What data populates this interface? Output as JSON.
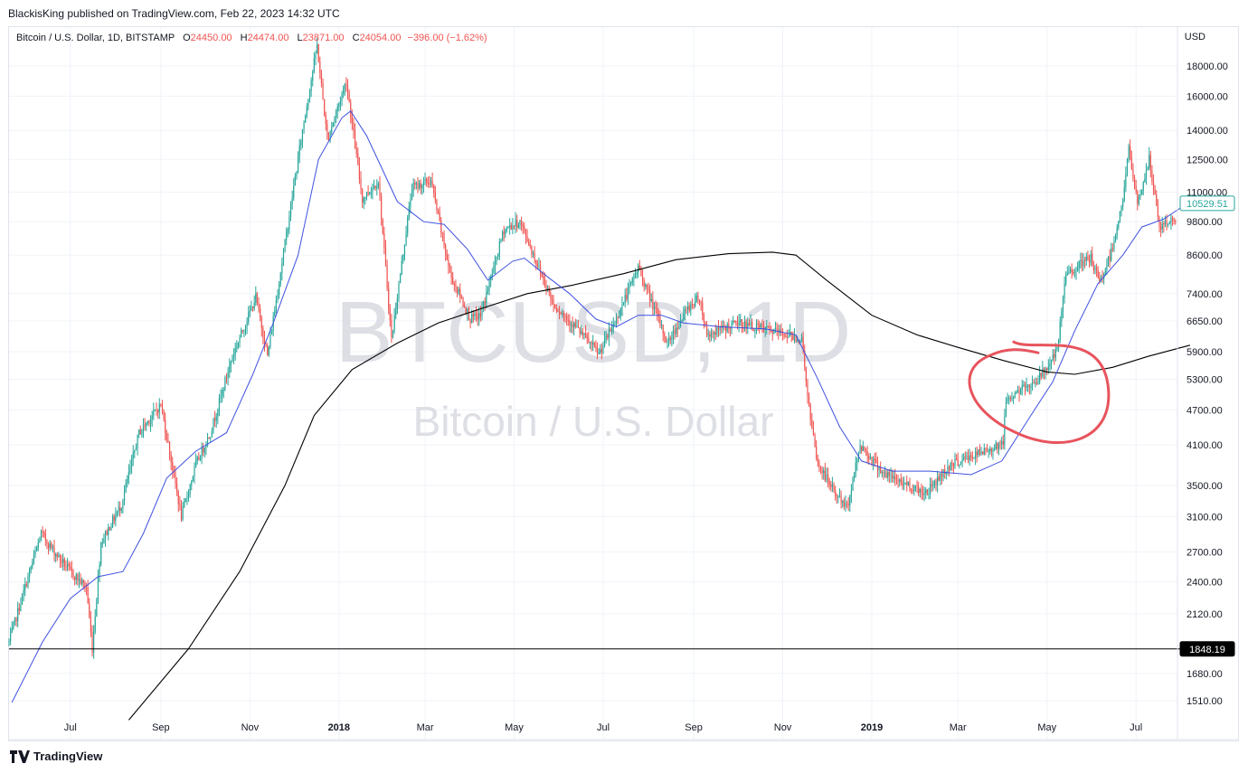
{
  "header": {
    "publish_line": "BlackisKing published on TradingView.com, Feb 22, 2023 14:32 UTC"
  },
  "legend": {
    "symbol_line": "Bitcoin / U.S. Dollar, 1D, BITSTAMP",
    "o_label": "O",
    "o_value": "24450.00",
    "h_label": "H",
    "h_value": "24474.00",
    "l_label": "L",
    "l_value": "23871.00",
    "c_label": "C",
    "c_value": "24054.00",
    "change": "−396.00 (−1.62%)"
  },
  "currency": "USD",
  "watermark": {
    "ticker": "BTCUSD, 1D",
    "name": "Bitcoin / U.S. Dollar"
  },
  "footer": {
    "brand": "TradingView"
  },
  "colors": {
    "up": "#26a69a",
    "down": "#ef5350",
    "ma_short": "#3f51e0",
    "ma_long": "#000000",
    "annotation": "#e8545d",
    "price_label_bg": "#ffffff"
  },
  "chart_data": {
    "type": "candlestick",
    "title": "Bitcoin / U.S. Dollar, 1D, BITSTAMP",
    "y_scale": "log",
    "ylim": [
      1400,
      21000
    ],
    "x_range": [
      "2017-05-20",
      "2019-08-07"
    ],
    "y_ticks": [
      18000,
      16000,
      14000,
      12500,
      11000,
      9800,
      8600,
      7400,
      6650,
      5900,
      5300,
      4700,
      4100,
      3500,
      3100,
      2700,
      2400,
      2120,
      1680,
      1510
    ],
    "y_tick_labels": [
      "18000.00",
      "16000.00",
      "14000.00",
      "12500.00",
      "11000.00",
      "9800.00",
      "8600.00",
      "7400.00",
      "6650.00",
      "5900.00",
      "5300.00",
      "4700.00",
      "4100.00",
      "3500.00",
      "3100.00",
      "2700.00",
      "2400.00",
      "2120.00",
      "1680.00",
      "1510.00"
    ],
    "x_ticks": [
      {
        "date": "2017-07-01",
        "label": "Jul"
      },
      {
        "date": "2017-09-01",
        "label": "Sep"
      },
      {
        "date": "2017-11-01",
        "label": "Nov"
      },
      {
        "date": "2018-01-01",
        "label": "2018"
      },
      {
        "date": "2018-03-01",
        "label": "Mar"
      },
      {
        "date": "2018-05-01",
        "label": "May"
      },
      {
        "date": "2018-07-01",
        "label": "Jul"
      },
      {
        "date": "2018-09-01",
        "label": "Sep"
      },
      {
        "date": "2018-11-01",
        "label": "Nov"
      },
      {
        "date": "2019-01-01",
        "label": "2019"
      },
      {
        "date": "2019-03-01",
        "label": "Mar"
      },
      {
        "date": "2019-05-01",
        "label": "May"
      },
      {
        "date": "2019-07-01",
        "label": "Jul"
      }
    ],
    "price_path": [
      [
        "2017-05-20",
        1900
      ],
      [
        "2017-06-01",
        2400
      ],
      [
        "2017-06-11",
        2900
      ],
      [
        "2017-06-20",
        2700
      ],
      [
        "2017-07-01",
        2500
      ],
      [
        "2017-07-12",
        2350
      ],
      [
        "2017-07-16",
        1850
      ],
      [
        "2017-07-22",
        2800
      ],
      [
        "2017-08-05",
        3250
      ],
      [
        "2017-08-17",
        4300
      ],
      [
        "2017-09-01",
        4800
      ],
      [
        "2017-09-15",
        3100
      ],
      [
        "2017-09-25",
        3800
      ],
      [
        "2017-10-05",
        4300
      ],
      [
        "2017-10-20",
        5800
      ],
      [
        "2017-11-05",
        7300
      ],
      [
        "2017-11-13",
        5800
      ],
      [
        "2017-11-25",
        9000
      ],
      [
        "2017-12-07",
        14000
      ],
      [
        "2017-12-17",
        19500
      ],
      [
        "2017-12-24",
        13500
      ],
      [
        "2018-01-06",
        17000
      ],
      [
        "2018-01-17",
        10700
      ],
      [
        "2018-01-28",
        11500
      ],
      [
        "2018-02-06",
        6200
      ],
      [
        "2018-02-20",
        11200
      ],
      [
        "2018-03-05",
        11500
      ],
      [
        "2018-03-18",
        8000
      ],
      [
        "2018-04-01",
        6700
      ],
      [
        "2018-04-08",
        6800
      ],
      [
        "2018-04-24",
        9500
      ],
      [
        "2018-05-05",
        9800
      ],
      [
        "2018-05-28",
        7100
      ],
      [
        "2018-06-12",
        6500
      ],
      [
        "2018-06-28",
        5850
      ],
      [
        "2018-07-10",
        6700
      ],
      [
        "2018-07-25",
        8200
      ],
      [
        "2018-08-14",
        6100
      ],
      [
        "2018-08-28",
        7000
      ],
      [
        "2018-09-05",
        7300
      ],
      [
        "2018-09-10",
        6300
      ],
      [
        "2018-10-01",
        6600
      ],
      [
        "2018-10-31",
        6350
      ],
      [
        "2018-11-14",
        6200
      ],
      [
        "2018-11-20",
        4500
      ],
      [
        "2018-11-25",
        3800
      ],
      [
        "2018-12-07",
        3400
      ],
      [
        "2018-12-15",
        3200
      ],
      [
        "2018-12-24",
        4100
      ],
      [
        "2019-01-10",
        3650
      ],
      [
        "2019-02-07",
        3400
      ],
      [
        "2019-02-24",
        3800
      ],
      [
        "2019-03-20",
        4000
      ],
      [
        "2019-04-01",
        4150
      ],
      [
        "2019-04-03",
        4900
      ],
      [
        "2019-04-25",
        5300
      ],
      [
        "2019-05-08",
        5900
      ],
      [
        "2019-05-14",
        8000
      ],
      [
        "2019-05-31",
        8500
      ],
      [
        "2019-06-06",
        7700
      ],
      [
        "2019-06-14",
        8700
      ],
      [
        "2019-06-22",
        10700
      ],
      [
        "2019-06-26",
        13000
      ],
      [
        "2019-07-02",
        10500
      ],
      [
        "2019-07-10",
        12500
      ],
      [
        "2019-07-17",
        9600
      ],
      [
        "2019-07-24",
        9800
      ],
      [
        "2019-08-01",
        10100
      ],
      [
        "2019-08-07",
        10529.51
      ]
    ],
    "ma_short_path": [
      [
        "2017-05-22",
        1500
      ],
      [
        "2017-06-12",
        1900
      ],
      [
        "2017-07-01",
        2250
      ],
      [
        "2017-07-20",
        2450
      ],
      [
        "2017-08-06",
        2500
      ],
      [
        "2017-08-20",
        2900
      ],
      [
        "2017-09-05",
        3600
      ],
      [
        "2017-09-25",
        4000
      ],
      [
        "2017-10-16",
        4300
      ],
      [
        "2017-11-03",
        5400
      ],
      [
        "2017-11-17",
        6600
      ],
      [
        "2017-12-04",
        8600
      ],
      [
        "2017-12-18",
        12500
      ],
      [
        "2018-01-03",
        14700
      ],
      [
        "2018-01-09",
        15100
      ],
      [
        "2018-01-20",
        13700
      ],
      [
        "2018-02-10",
        10600
      ],
      [
        "2018-02-28",
        9800
      ],
      [
        "2018-03-14",
        9700
      ],
      [
        "2018-03-30",
        8800
      ],
      [
        "2018-04-13",
        7800
      ],
      [
        "2018-04-30",
        8400
      ],
      [
        "2018-05-08",
        8500
      ],
      [
        "2018-05-24",
        7900
      ],
      [
        "2018-06-08",
        7400
      ],
      [
        "2018-06-26",
        6700
      ],
      [
        "2018-07-10",
        6500
      ],
      [
        "2018-07-25",
        6800
      ],
      [
        "2018-08-10",
        6800
      ],
      [
        "2018-08-25",
        6600
      ],
      [
        "2018-09-20",
        6500
      ],
      [
        "2018-10-20",
        6450
      ],
      [
        "2018-11-10",
        6300
      ],
      [
        "2018-11-25",
        5300
      ],
      [
        "2018-12-10",
        4400
      ],
      [
        "2018-12-25",
        3850
      ],
      [
        "2019-01-15",
        3700
      ],
      [
        "2019-02-10",
        3700
      ],
      [
        "2019-03-10",
        3650
      ],
      [
        "2019-03-31",
        3850
      ],
      [
        "2019-04-20",
        4600
      ],
      [
        "2019-05-05",
        5250
      ],
      [
        "2019-05-20",
        6400
      ],
      [
        "2019-06-05",
        7700
      ],
      [
        "2019-06-22",
        8600
      ],
      [
        "2019-07-05",
        9600
      ],
      [
        "2019-07-20",
        9900
      ],
      [
        "2019-08-07",
        10600
      ]
    ],
    "ma_long_path": [
      [
        "2017-08-10",
        1400
      ],
      [
        "2017-09-20",
        1850
      ],
      [
        "2017-10-25",
        2500
      ],
      [
        "2017-11-25",
        3500
      ],
      [
        "2017-12-15",
        4600
      ],
      [
        "2018-01-10",
        5500
      ],
      [
        "2018-02-10",
        6100
      ],
      [
        "2018-03-10",
        6600
      ],
      [
        "2018-04-10",
        7000
      ],
      [
        "2018-05-10",
        7400
      ],
      [
        "2018-06-10",
        7650
      ],
      [
        "2018-07-15",
        8000
      ],
      [
        "2018-08-20",
        8450
      ],
      [
        "2018-09-25",
        8650
      ],
      [
        "2018-10-25",
        8700
      ],
      [
        "2018-11-10",
        8600
      ],
      [
        "2018-12-01",
        7800
      ],
      [
        "2019-01-01",
        6800
      ],
      [
        "2019-02-01",
        6300
      ],
      [
        "2019-03-01",
        6000
      ],
      [
        "2019-04-01",
        5700
      ],
      [
        "2019-05-01",
        5450
      ],
      [
        "2019-05-20",
        5400
      ],
      [
        "2019-06-15",
        5550
      ],
      [
        "2019-07-10",
        5800
      ],
      [
        "2019-08-07",
        6050
      ]
    ],
    "horizontal_line": {
      "value": 1848.19,
      "label": "1848.19"
    },
    "last_price": {
      "value": 10529.51,
      "label": "10529.51"
    },
    "annotation": {
      "shape": "circle",
      "center_date": "2019-04-28",
      "center_value": 5100
    }
  }
}
